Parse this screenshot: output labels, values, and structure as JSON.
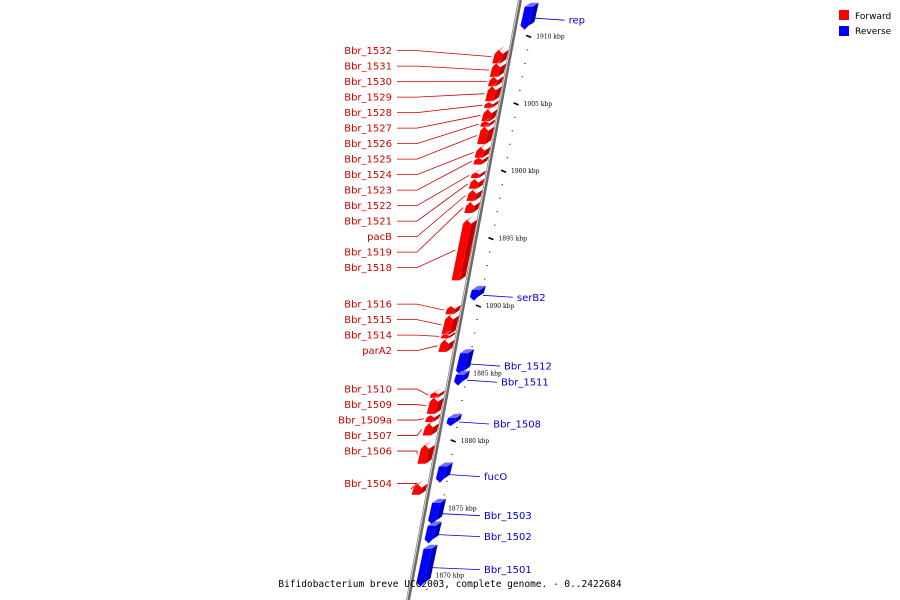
{
  "legend": {
    "forward_label": "Forward",
    "reverse_label": "Reverse",
    "forward_color": "#ff0000",
    "reverse_color": "#0000ff"
  },
  "caption": "Bifidobacterium breve UCC2003, complete genome. - 0..2422684",
  "ticks": [
    {
      "kbp": 1910,
      "label": "1910 kbp"
    },
    {
      "kbp": 1905,
      "label": "1905 kbp"
    },
    {
      "kbp": 1900,
      "label": "1900 kbp"
    },
    {
      "kbp": 1895,
      "label": "1895 kbp"
    },
    {
      "kbp": 1890,
      "label": "1890 kbp"
    },
    {
      "kbp": 1885,
      "label": "1885 kbp"
    },
    {
      "kbp": 1880,
      "label": "1880 kbp"
    },
    {
      "kbp": 1875,
      "label": "1875 kbp"
    },
    {
      "kbp": 1870,
      "label": "1870 kbp"
    }
  ],
  "genes": [
    {
      "name": "rep",
      "strand": "reverse",
      "start_kbp": 1910.5,
      "end_kbp": 1912.2
    },
    {
      "name": "Bbr_1532",
      "strand": "forward",
      "start_kbp": 1908.0,
      "end_kbp": 1909.0
    },
    {
      "name": "Bbr_1531",
      "strand": "forward",
      "start_kbp": 1907.0,
      "end_kbp": 1908.0
    },
    {
      "name": "Bbr_1530",
      "strand": "forward",
      "start_kbp": 1906.3,
      "end_kbp": 1907.0
    },
    {
      "name": "Bbr_1529",
      "strand": "forward",
      "start_kbp": 1905.2,
      "end_kbp": 1906.3
    },
    {
      "name": "Bbr_1528",
      "strand": "forward",
      "start_kbp": 1904.7,
      "end_kbp": 1905.1
    },
    {
      "name": "Bbr_1527",
      "strand": "forward",
      "start_kbp": 1903.7,
      "end_kbp": 1904.6
    },
    {
      "name": "Bbr_1526",
      "strand": "forward",
      "start_kbp": 1903.3,
      "end_kbp": 1903.7
    },
    {
      "name": "Bbr_1525",
      "strand": "forward",
      "start_kbp": 1902.0,
      "end_kbp": 1903.3
    },
    {
      "name": "Bbr_1524",
      "strand": "forward",
      "start_kbp": 1901.0,
      "end_kbp": 1901.8
    },
    {
      "name": "Bbr_1523",
      "strand": "forward",
      "start_kbp": 1900.5,
      "end_kbp": 1901.0
    },
    {
      "name": "Bbr_1522",
      "strand": "forward",
      "start_kbp": 1899.5,
      "end_kbp": 1899.9
    },
    {
      "name": "Bbr_1521",
      "strand": "forward",
      "start_kbp": 1898.7,
      "end_kbp": 1899.4
    },
    {
      "name": "pacB",
      "strand": "forward",
      "start_kbp": 1897.8,
      "end_kbp": 1898.6
    },
    {
      "name": "Bbr_1519",
      "strand": "forward",
      "start_kbp": 1896.9,
      "end_kbp": 1897.7
    },
    {
      "name": "Bbr_1518",
      "strand": "forward",
      "start_kbp": 1891.9,
      "end_kbp": 1896.4
    },
    {
      "name": "serB2",
      "strand": "reverse",
      "start_kbp": 1890.4,
      "end_kbp": 1891.2
    },
    {
      "name": "Bbr_1516",
      "strand": "forward",
      "start_kbp": 1889.4,
      "end_kbp": 1890.0
    },
    {
      "name": "Bbr_1515",
      "strand": "forward",
      "start_kbp": 1887.9,
      "end_kbp": 1889.3
    },
    {
      "name": "Bbr_1514",
      "strand": "forward",
      "start_kbp": 1887.6,
      "end_kbp": 1887.9
    },
    {
      "name": "parA2",
      "strand": "forward",
      "start_kbp": 1886.6,
      "end_kbp": 1887.5
    },
    {
      "name": "Bbr_1512",
      "strand": "reverse",
      "start_kbp": 1884.9,
      "end_kbp": 1886.5
    },
    {
      "name": "Bbr_1511",
      "strand": "reverse",
      "start_kbp": 1884.1,
      "end_kbp": 1884.9
    },
    {
      "name": "Bbr_1510",
      "strand": "forward",
      "start_kbp": 1883.2,
      "end_kbp": 1883.6
    },
    {
      "name": "Bbr_1509",
      "strand": "forward",
      "start_kbp": 1882.0,
      "end_kbp": 1883.2
    },
    {
      "name": "Bbr_1509a",
      "strand": "forward",
      "start_kbp": 1881.4,
      "end_kbp": 1881.9
    },
    {
      "name": "Bbr_1508",
      "strand": "reverse",
      "start_kbp": 1881.1,
      "end_kbp": 1881.7
    },
    {
      "name": "Bbr_1507",
      "strand": "forward",
      "start_kbp": 1880.4,
      "end_kbp": 1881.3
    },
    {
      "name": "Bbr_1506",
      "strand": "forward",
      "start_kbp": 1878.3,
      "end_kbp": 1879.7
    },
    {
      "name": "fucO",
      "strand": "reverse",
      "start_kbp": 1876.9,
      "end_kbp": 1878.1
    },
    {
      "name": "Bbr_1504",
      "strand": "forward",
      "start_kbp": 1876.0,
      "end_kbp": 1876.8
    },
    {
      "name": "Bbr_1503",
      "strand": "reverse",
      "start_kbp": 1873.8,
      "end_kbp": 1875.4
    },
    {
      "name": "Bbr_1502",
      "strand": "reverse",
      "start_kbp": 1872.4,
      "end_kbp": 1873.7
    },
    {
      "name": "Bbr_1501",
      "strand": "reverse",
      "start_kbp": 1869.2,
      "end_kbp": 1872.0
    }
  ]
}
